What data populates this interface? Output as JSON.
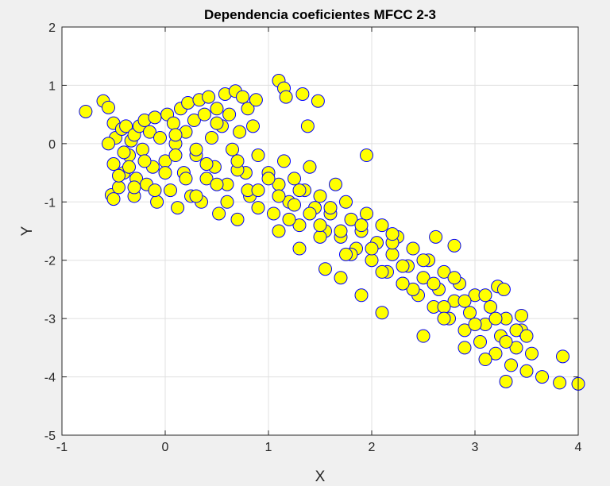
{
  "chart_data": {
    "type": "scatter",
    "title": "Dependencia coeficientes MFCC 2-3",
    "xlabel": "X",
    "ylabel": "Y",
    "xlim": [
      -1,
      4
    ],
    "ylim": [
      -5,
      2
    ],
    "xticks": [
      "-1",
      "0",
      "1",
      "2",
      "3",
      "4"
    ],
    "yticks": [
      "2",
      "1",
      "0",
      "-1",
      "-2",
      "-3",
      "-4",
      "-5"
    ],
    "grid": true,
    "marker": {
      "fill": "#ffff00",
      "edge": "#0000ff"
    },
    "colors": {
      "figure_bg": "#f0f0f0",
      "axes_bg": "#ffffff",
      "grid": "#e0e0e0",
      "axis": "#262626"
    },
    "series": [
      {
        "x": [
          -0.77,
          -0.6,
          -0.55,
          -0.5,
          -0.5,
          -0.52,
          -0.48,
          -0.45,
          -0.42,
          -0.4,
          -0.38,
          -0.35,
          -0.33,
          -0.3,
          -0.3,
          -0.28,
          -0.25,
          -0.22,
          -0.2,
          -0.18,
          -0.15,
          -0.12,
          -0.1,
          -0.08,
          -0.05,
          0.0,
          0.02,
          0.05,
          0.08,
          0.1,
          0.12,
          0.15,
          0.18,
          0.2,
          0.22,
          0.25,
          0.28,
          0.3,
          0.33,
          0.35,
          0.38,
          0.4,
          0.42,
          0.45,
          0.48,
          0.5,
          0.52,
          0.55,
          0.58,
          0.6,
          0.62,
          0.65,
          0.68,
          0.7,
          0.72,
          0.75,
          0.78,
          0.8,
          0.82,
          0.85,
          0.88,
          0.9,
          1.1,
          1.15,
          1.17,
          1.33,
          1.38,
          1.48,
          1.0,
          1.05,
          1.1,
          1.15,
          1.2,
          1.25,
          1.3,
          1.35,
          1.4,
          1.45,
          1.5,
          1.55,
          1.6,
          1.65,
          1.7,
          1.75,
          1.8,
          1.85,
          1.9,
          1.95,
          2.0,
          2.05,
          2.1,
          2.15,
          2.2,
          2.25,
          2.3,
          2.35,
          2.4,
          2.45,
          2.5,
          2.55,
          2.6,
          2.65,
          2.7,
          2.75,
          2.8,
          2.85,
          2.9,
          2.95,
          3.0,
          3.05,
          3.1,
          3.15,
          3.2,
          3.25,
          3.3,
          3.35,
          3.4,
          3.45,
          3.5,
          3.55,
          3.65,
          3.82,
          3.85,
          4.0,
          -0.55,
          -0.5,
          -0.45,
          -0.4,
          -0.35,
          -0.3,
          -0.2,
          -0.1,
          0.0,
          0.1,
          0.2,
          0.3,
          0.4,
          0.5,
          0.6,
          0.7,
          0.8,
          0.9,
          1.0,
          1.1,
          1.2,
          1.3,
          1.4,
          1.5,
          1.6,
          1.7,
          1.8,
          1.9,
          2.0,
          2.1,
          2.2,
          2.3,
          2.4,
          2.5,
          2.6,
          2.7,
          2.8,
          2.9,
          3.0,
          3.1,
          3.2,
          3.3,
          3.4,
          3.5,
          0.1,
          0.3,
          0.5,
          0.7,
          0.9,
          1.1,
          1.3,
          1.5,
          1.7,
          1.9,
          2.1,
          2.3,
          2.5,
          2.7,
          2.9,
          3.1,
          3.3,
          1.25,
          1.55,
          1.75,
          2.2,
          3.22,
          3.28,
          3.45,
          2.62,
          2.8,
          1.95
        ],
        "y": [
          0.55,
          0.73,
          0.62,
          0.35,
          -0.35,
          -0.88,
          0.1,
          -0.75,
          0.25,
          -0.5,
          0.3,
          -0.2,
          0.05,
          -0.9,
          0.15,
          -0.6,
          0.3,
          -0.1,
          0.4,
          -0.7,
          0.2,
          -0.4,
          0.45,
          -1.0,
          0.1,
          -0.3,
          0.5,
          -0.8,
          0.35,
          0.0,
          -1.1,
          0.6,
          -0.5,
          0.2,
          0.7,
          -0.9,
          0.4,
          -0.2,
          0.75,
          -1.0,
          0.5,
          -0.6,
          0.8,
          0.1,
          -0.4,
          0.6,
          -1.2,
          0.3,
          0.85,
          -0.7,
          0.5,
          -0.1,
          0.9,
          -1.3,
          0.2,
          0.8,
          -0.5,
          0.6,
          -0.9,
          0.3,
          0.75,
          -0.2,
          1.08,
          0.95,
          0.8,
          0.85,
          0.3,
          0.73,
          -0.5,
          -1.2,
          -0.7,
          -0.3,
          -1.0,
          -0.6,
          -1.4,
          -0.8,
          -0.4,
          -1.1,
          -0.9,
          -1.5,
          -1.2,
          -0.7,
          -1.6,
          -1.0,
          -1.3,
          -1.8,
          -1.5,
          -1.2,
          -2.0,
          -1.7,
          -1.4,
          -2.2,
          -1.9,
          -1.6,
          -2.4,
          -2.1,
          -1.8,
          -2.6,
          -2.3,
          -2.0,
          -2.8,
          -2.5,
          -2.2,
          -3.0,
          -2.7,
          -2.4,
          -3.2,
          -2.9,
          -2.6,
          -3.4,
          -3.1,
          -2.8,
          -3.6,
          -3.3,
          -3.0,
          -3.8,
          -3.5,
          -3.2,
          -3.9,
          -3.6,
          -4.0,
          -4.1,
          -3.65,
          -4.12,
          0.0,
          -0.95,
          -0.55,
          -0.15,
          -0.4,
          -0.75,
          -0.3,
          -0.8,
          -0.5,
          -0.2,
          -0.6,
          -0.9,
          -0.35,
          -0.7,
          -1.0,
          -0.45,
          -0.8,
          -1.1,
          -0.6,
          -0.9,
          -1.3,
          -0.8,
          -1.2,
          -1.6,
          -1.1,
          -1.5,
          -1.9,
          -1.4,
          -1.8,
          -2.2,
          -1.7,
          -2.1,
          -2.5,
          -2.0,
          -2.4,
          -2.8,
          -2.3,
          -2.7,
          -3.1,
          -2.6,
          -3.0,
          -3.4,
          -3.2,
          -3.3,
          0.15,
          -0.1,
          0.35,
          -0.3,
          -0.8,
          -1.5,
          -1.8,
          -1.4,
          -2.3,
          -2.6,
          -2.9,
          -2.4,
          -3.3,
          -3.0,
          -3.5,
          -3.7,
          -4.08,
          -1.05,
          -2.15,
          -1.9,
          -1.55,
          -2.45,
          -2.5,
          -2.95,
          -1.6,
          -1.75,
          -0.2
        ]
      }
    ]
  }
}
